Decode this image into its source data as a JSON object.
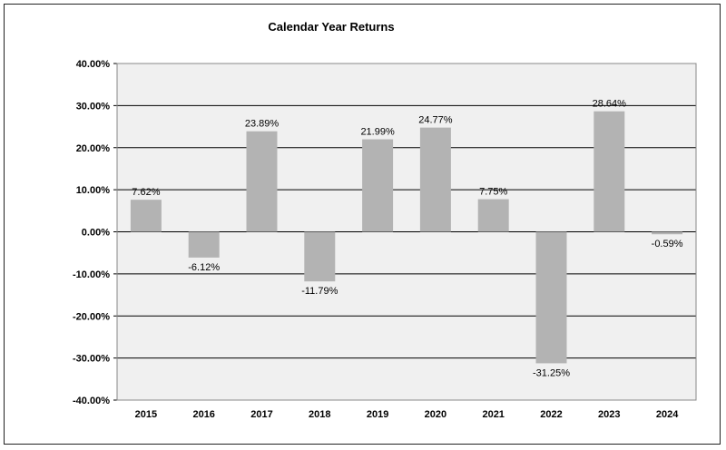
{
  "chart_data": {
    "type": "bar",
    "title": "Calendar Year Returns",
    "categories": [
      "2015",
      "2016",
      "2017",
      "2018",
      "2019",
      "2020",
      "2021",
      "2022",
      "2023",
      "2024"
    ],
    "values": [
      7.62,
      -6.12,
      23.89,
      -11.79,
      21.99,
      24.77,
      7.75,
      -31.25,
      28.64,
      -0.59
    ],
    "value_labels": [
      "7.62%",
      "-6.12%",
      "23.89%",
      "-11.79%",
      "21.99%",
      "24.77%",
      "7.75%",
      "-31.25%",
      "28.64%",
      "-0.59%"
    ],
    "ylim": [
      -40,
      40
    ],
    "yticks": [
      40,
      30,
      20,
      10,
      0,
      -10,
      -20,
      -30,
      -40
    ],
    "ytick_labels": [
      "40.00%",
      "30.00%",
      "20.00%",
      "10.00%",
      "0.00%",
      "-10.00%",
      "-20.00%",
      "-30.00%",
      "-40.00%"
    ],
    "grid": true,
    "colors": {
      "bar": "#b3b3b3",
      "plot_bg": "#f0f0f0",
      "grid": "#000000"
    }
  }
}
